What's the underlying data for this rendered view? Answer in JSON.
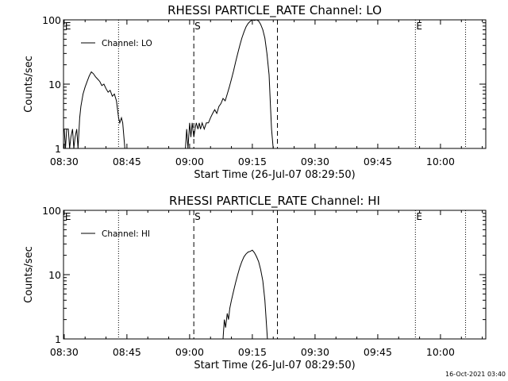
{
  "chart_data": [
    {
      "type": "line",
      "title": "RHESSI PARTICLE_RATE Channel: LO",
      "xlabel": "Start Time (26-Jul-07 08:29:50)",
      "ylabel": "Counts/sec",
      "yscale": "log",
      "ylim": [
        1,
        100
      ],
      "xlim": [
        "08:29:50",
        "10:10:50"
      ],
      "x_ticks": [
        "08:30",
        "08:45",
        "09:00",
        "09:15",
        "09:30",
        "09:45",
        "10:00"
      ],
      "y_ticks": [
        "1",
        "10",
        "100"
      ],
      "legend": {
        "position": "top-left",
        "entries": [
          "Channel: LO"
        ]
      },
      "grid": false,
      "markers": [
        {
          "time": "08:30",
          "label": "E",
          "style": "none"
        },
        {
          "time": "08:43",
          "label": "",
          "style": "dotted"
        },
        {
          "time": "09:01",
          "label": "S",
          "style": "dashed"
        },
        {
          "time": "09:21",
          "label": "",
          "style": "dashed"
        },
        {
          "time": "09:54",
          "label": "E",
          "style": "dotted"
        },
        {
          "time": "10:06",
          "label": "",
          "style": "dotted"
        }
      ],
      "series": [
        {
          "name": "Channel: LO",
          "points": [
            [
              "08:30.0",
              2.0
            ],
            [
              "08:30.3",
              1.0
            ],
            [
              "08:30.6",
              2.0
            ],
            [
              "08:31.0",
              2.0
            ],
            [
              "08:31.3",
              1.0
            ],
            [
              "08:31.6",
              1.5
            ],
            [
              "08:32.0",
              2.0
            ],
            [
              "08:32.3",
              1.0
            ],
            [
              "08:32.6",
              1.5
            ],
            [
              "08:33.0",
              2.0
            ],
            [
              "08:33.3",
              1.0
            ],
            [
              "08:33.7",
              3.0
            ],
            [
              "08:34.0",
              4.5
            ],
            [
              "08:34.5",
              7.0
            ],
            [
              "08:35.0",
              9.0
            ],
            [
              "08:35.5",
              11.0
            ],
            [
              "08:36.0",
              13.5
            ],
            [
              "08:36.5",
              15.5
            ],
            [
              "08:37.0",
              14.5
            ],
            [
              "08:37.5",
              13.0
            ],
            [
              "08:38.0",
              12.0
            ],
            [
              "08:38.5",
              11.0
            ],
            [
              "08:39.0",
              9.5
            ],
            [
              "08:39.5",
              10.0
            ],
            [
              "08:40.0",
              8.5
            ],
            [
              "08:40.5",
              7.5
            ],
            [
              "08:41.0",
              8.0
            ],
            [
              "08:41.5",
              6.5
            ],
            [
              "08:42.0",
              7.0
            ],
            [
              "08:42.5",
              5.5
            ],
            [
              "08:43.0",
              3.0
            ],
            [
              "08:43.3",
              2.5
            ],
            [
              "08:43.7",
              3.0
            ],
            [
              "08:44.0",
              2.5
            ],
            [
              "08:44.5",
              1.0
            ],
            [
              "08:59.0",
              1.0
            ],
            [
              "08:59.3",
              2.0
            ],
            [
              "08:59.6",
              1.0
            ],
            [
              "09:00.0",
              2.5
            ],
            [
              "09:00.3",
              1.5
            ],
            [
              "09:00.6",
              2.5
            ],
            [
              "09:01.0",
              1.5
            ],
            [
              "09:01.3",
              2.0
            ],
            [
              "09:01.6",
              2.5
            ],
            [
              "09:02.0",
              2.0
            ],
            [
              "09:02.3",
              2.5
            ],
            [
              "09:02.6",
              2.0
            ],
            [
              "09:03.0",
              2.5
            ],
            [
              "09:03.5",
              2.0
            ],
            [
              "09:04.0",
              2.5
            ],
            [
              "09:04.5",
              2.5
            ],
            [
              "09:05.0",
              3.0
            ],
            [
              "09:05.5",
              3.5
            ],
            [
              "09:06.0",
              4.0
            ],
            [
              "09:06.5",
              3.5
            ],
            [
              "09:07.0",
              4.5
            ],
            [
              "09:07.5",
              5.0
            ],
            [
              "09:08.0",
              6.0
            ],
            [
              "09:08.5",
              5.5
            ],
            [
              "09:09.0",
              7.0
            ],
            [
              "09:09.5",
              9.0
            ],
            [
              "09:10.0",
              12.0
            ],
            [
              "09:10.5",
              16.0
            ],
            [
              "09:11.0",
              22.0
            ],
            [
              "09:11.5",
              30.0
            ],
            [
              "09:12.0",
              40.0
            ],
            [
              "09:12.5",
              52.0
            ],
            [
              "09:13.0",
              65.0
            ],
            [
              "09:13.5",
              78.0
            ],
            [
              "09:14.0",
              88.0
            ],
            [
              "09:14.5",
              95.0
            ],
            [
              "09:15.0",
              100.0
            ],
            [
              "09:15.5",
              98.0
            ],
            [
              "09:16.0",
              100.0
            ],
            [
              "09:16.5",
              96.0
            ],
            [
              "09:17.0",
              85.0
            ],
            [
              "09:17.5",
              70.0
            ],
            [
              "09:18.0",
              52.0
            ],
            [
              "09:18.5",
              30.0
            ],
            [
              "09:19.0",
              14.0
            ],
            [
              "09:19.3",
              5.0
            ],
            [
              "09:19.6",
              2.0
            ],
            [
              "09:20.0",
              1.0
            ]
          ]
        }
      ]
    },
    {
      "type": "line",
      "title": "RHESSI PARTICLE_RATE Channel: HI",
      "xlabel": "Start Time (26-Jul-07 08:29:50)",
      "ylabel": "Counts/sec",
      "yscale": "log",
      "ylim": [
        1,
        100
      ],
      "xlim": [
        "08:29:50",
        "10:10:50"
      ],
      "x_ticks": [
        "08:30",
        "08:45",
        "09:00",
        "09:15",
        "09:30",
        "09:45",
        "10:00"
      ],
      "y_ticks": [
        "1",
        "10",
        "100"
      ],
      "legend": {
        "position": "top-left",
        "entries": [
          "Channel: HI"
        ]
      },
      "grid": false,
      "markers": [
        {
          "time": "08:30",
          "label": "E",
          "style": "none"
        },
        {
          "time": "08:43",
          "label": "",
          "style": "dotted"
        },
        {
          "time": "09:01",
          "label": "S",
          "style": "dashed"
        },
        {
          "time": "09:21",
          "label": "",
          "style": "dashed"
        },
        {
          "time": "09:54",
          "label": "E",
          "style": "dotted"
        },
        {
          "time": "10:06",
          "label": "",
          "style": "dotted"
        }
      ],
      "series": [
        {
          "name": "Channel: HI",
          "points": [
            [
              "09:08.0",
              1.0
            ],
            [
              "09:08.3",
              2.0
            ],
            [
              "09:08.6",
              1.5
            ],
            [
              "09:09.0",
              2.5
            ],
            [
              "09:09.3",
              2.0
            ],
            [
              "09:09.6",
              3.0
            ],
            [
              "09:10.0",
              4.0
            ],
            [
              "09:10.5",
              5.5
            ],
            [
              "09:11.0",
              7.5
            ],
            [
              "09:11.5",
              10.0
            ],
            [
              "09:12.0",
              13.0
            ],
            [
              "09:12.5",
              16.0
            ],
            [
              "09:13.0",
              19.0
            ],
            [
              "09:13.5",
              21.0
            ],
            [
              "09:14.0",
              22.5
            ],
            [
              "09:14.5",
              23.0
            ],
            [
              "09:15.0",
              24.0
            ],
            [
              "09:15.5",
              22.0
            ],
            [
              "09:16.0",
              19.0
            ],
            [
              "09:16.5",
              16.0
            ],
            [
              "09:17.0",
              12.0
            ],
            [
              "09:17.5",
              8.0
            ],
            [
              "09:18.0",
              4.0
            ],
            [
              "09:18.3",
              2.0
            ],
            [
              "09:18.6",
              1.0
            ]
          ]
        }
      ]
    }
  ],
  "timestamp": "16-Oct-2021 03:40"
}
